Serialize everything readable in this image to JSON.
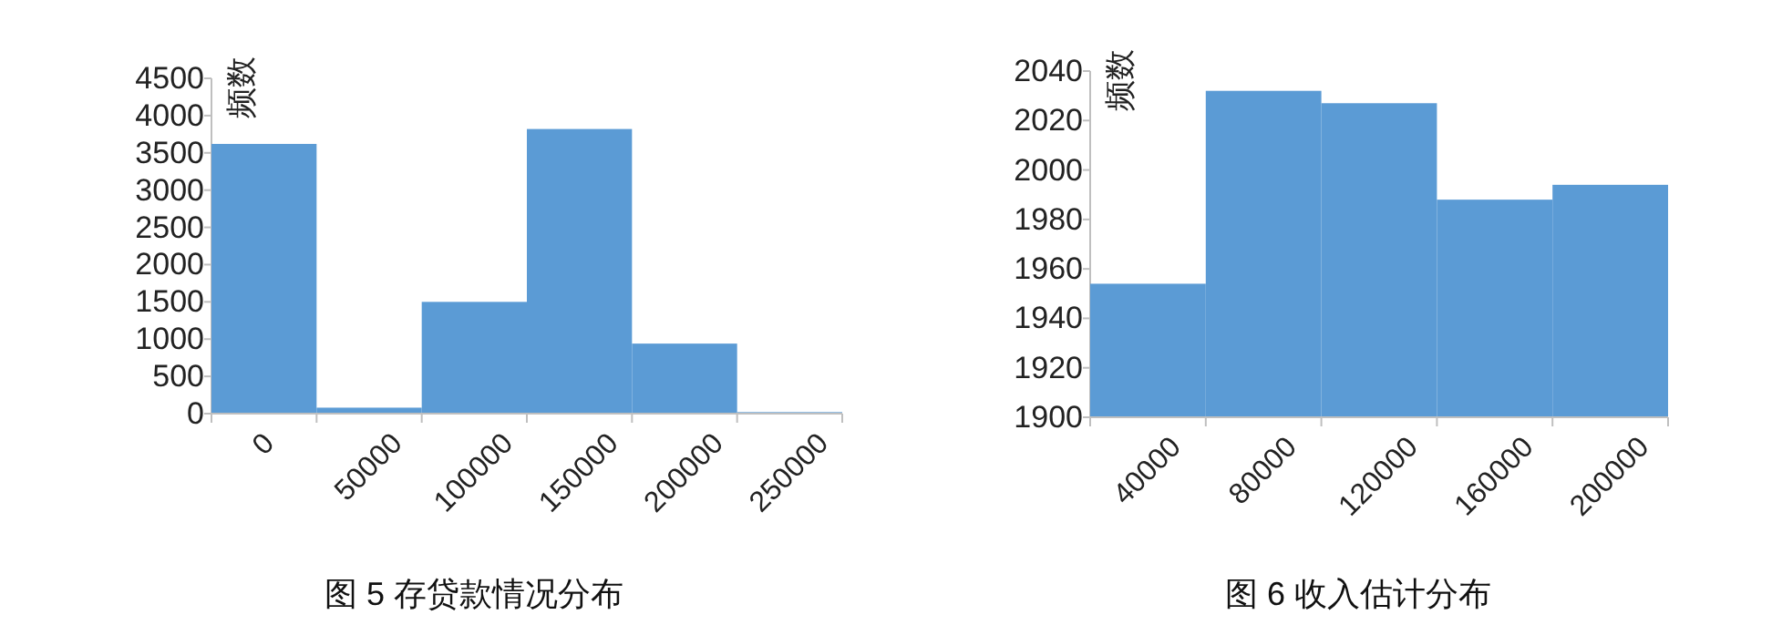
{
  "chart_data": [
    {
      "type": "bar",
      "title": "图 5 存贷款情况分布",
      "ylabel": "频数",
      "categories": [
        "0",
        "50000",
        "100000",
        "150000",
        "200000",
        "250000"
      ],
      "series": [
        {
          "color": "#5b9bd5",
          "values": [
            3620,
            80,
            1500,
            3820,
            940,
            20
          ]
        }
      ],
      "ylim": [
        0,
        4500
      ],
      "yticks": [
        0,
        500,
        1000,
        1500,
        2000,
        2500,
        3000,
        3500,
        4000,
        4500
      ],
      "grid": false
    },
    {
      "type": "bar",
      "title": "图 6 收入估计分布",
      "ylabel": "频数",
      "categories": [
        "40000",
        "80000",
        "120000",
        "160000",
        "200000"
      ],
      "series": [
        {
          "color": "#5b9bd5",
          "values": [
            1954,
            2032,
            2027,
            1988,
            1994
          ]
        }
      ],
      "ylim": [
        1900,
        2040
      ],
      "yticks": [
        1900,
        1920,
        1940,
        1960,
        1980,
        2000,
        2020,
        2040
      ],
      "grid": false
    }
  ]
}
